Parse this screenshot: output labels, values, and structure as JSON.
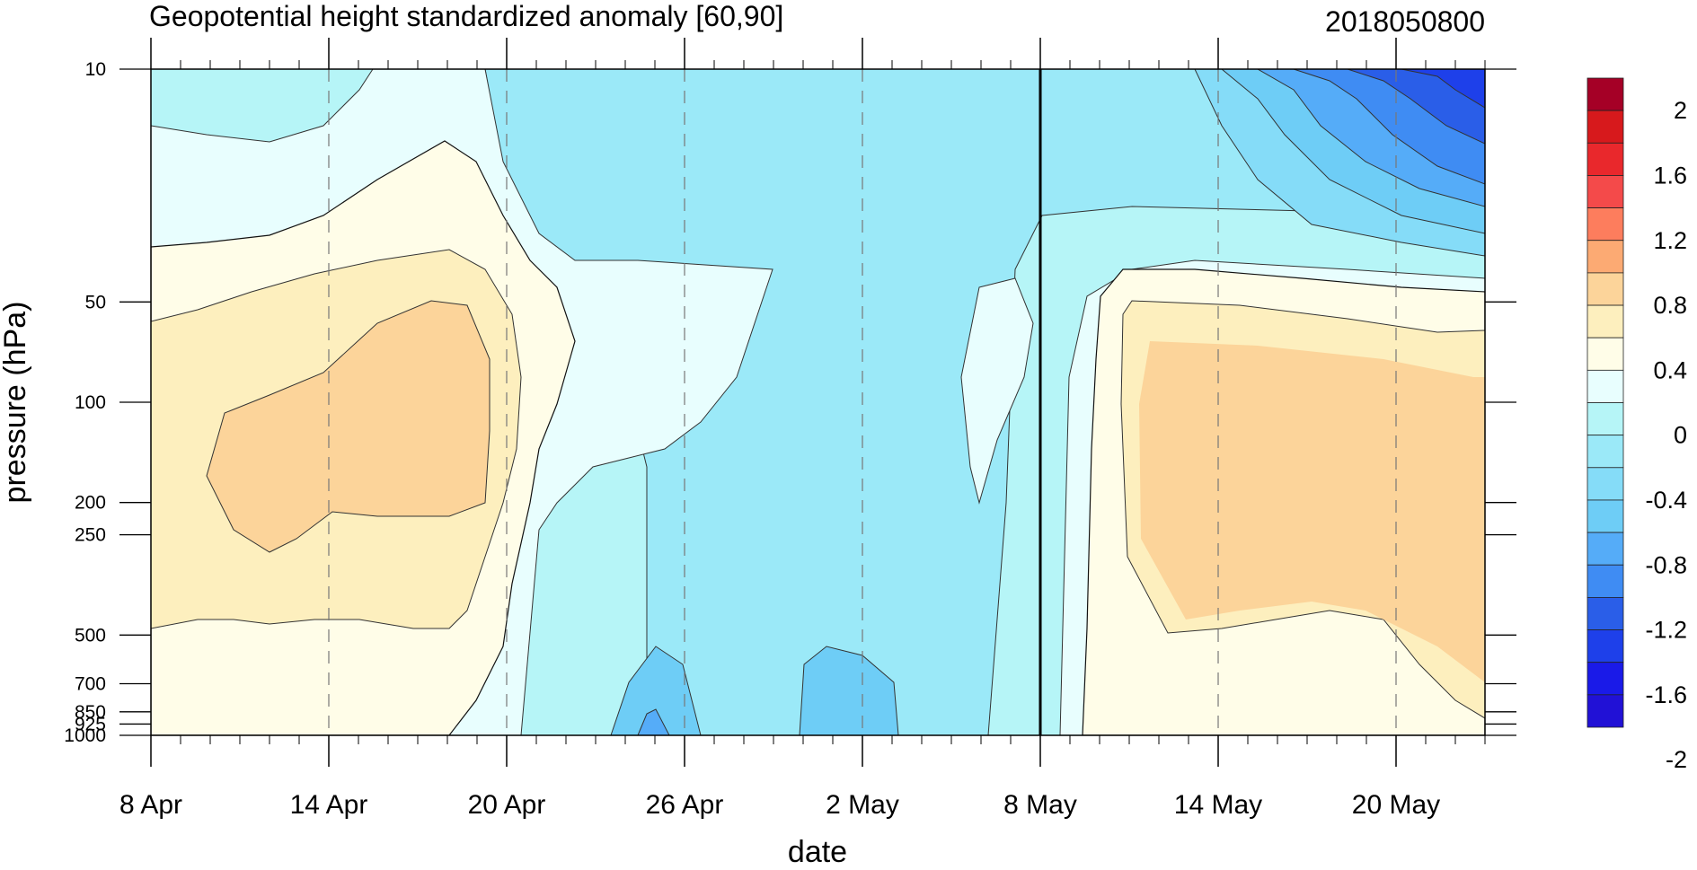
{
  "chart_data": {
    "type": "heatmap",
    "title": "Geopotential height standardized anomaly [60,90]",
    "date_label": "2018050800",
    "xlabel": "date",
    "ylabel": "pressure (hPa)",
    "x_ticks": [
      "8 Apr",
      "14 Apr",
      "20 Apr",
      "26 Apr",
      "2 May",
      "8 May",
      "14 May",
      "20 May"
    ],
    "y_ticks": [
      "10",
      "50",
      "100",
      "200",
      "250",
      "500",
      "700",
      "850",
      "925",
      "1000"
    ],
    "y_tick_values": [
      10,
      50,
      100,
      200,
      250,
      500,
      700,
      850,
      925,
      1000
    ],
    "ylim": [
      1000,
      10
    ],
    "y_scale": "log",
    "x_range": [
      "8 Apr",
      "23 May"
    ],
    "forecast_start": "8 May",
    "colorbar": {
      "labels": [
        "2",
        "1.6",
        "1.2",
        "0.8",
        "0.4",
        "0",
        "-0.4",
        "-0.8",
        "-1.2",
        "-1.6",
        "-2"
      ],
      "colors": [
        "#a50026",
        "#d7191c",
        "#e9282c",
        "#f44a4a",
        "#fd7d5d",
        "#fcaa73",
        "#fcd49a",
        "#fdefbe",
        "#fffde8",
        "#e8fefe",
        "#b6f5f7",
        "#9be9f8",
        "#85dcf8",
        "#6ecdf6",
        "#55acf8",
        "#3f8cf3",
        "#2a5ee8",
        "#1e40ea",
        "#1a1ae8",
        "#2111d6"
      ]
    }
  }
}
